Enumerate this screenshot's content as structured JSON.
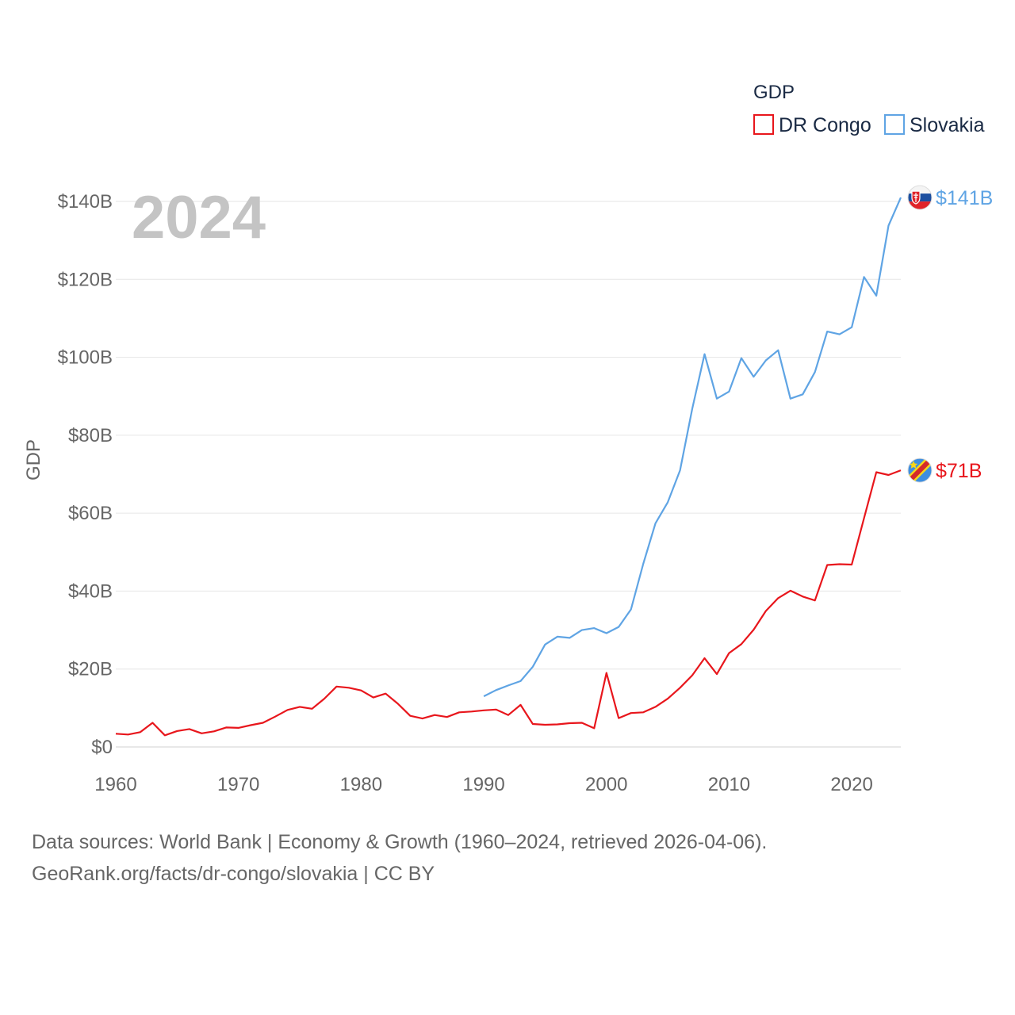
{
  "chart_data": {
    "type": "line",
    "title": "",
    "year_label": "2024",
    "ylabel": "GDP",
    "xlabel": "",
    "ylim": [
      0,
      140
    ],
    "xlim": [
      1960,
      2024
    ],
    "y_ticks": [
      0,
      20,
      40,
      60,
      80,
      100,
      120,
      140
    ],
    "y_tick_labels": [
      "$0",
      "$20B",
      "$40B",
      "$60B",
      "$80B",
      "$100B",
      "$120B",
      "$140B"
    ],
    "x_ticks": [
      1960,
      1970,
      1980,
      1990,
      2000,
      2010,
      2020
    ],
    "x_tick_labels": [
      "1960",
      "1970",
      "1980",
      "1990",
      "2000",
      "2010",
      "2020"
    ],
    "grid": true,
    "legend": {
      "title": "GDP",
      "position": "top-right",
      "entries": [
        {
          "name": "DR Congo",
          "color": "#e8161c"
        },
        {
          "name": "Slovakia",
          "color": "#5fa4e4"
        }
      ]
    },
    "series": [
      {
        "name": "DR Congo",
        "color": "#e8161c",
        "end_label": "$71B",
        "flag_icon": "dr-congo-flag-icon",
        "x": [
          1960,
          1961,
          1962,
          1963,
          1964,
          1965,
          1966,
          1967,
          1968,
          1969,
          1970,
          1971,
          1972,
          1973,
          1974,
          1975,
          1976,
          1977,
          1978,
          1979,
          1980,
          1981,
          1982,
          1983,
          1984,
          1985,
          1986,
          1987,
          1988,
          1989,
          1990,
          1991,
          1992,
          1993,
          1994,
          1995,
          1996,
          1997,
          1998,
          1999,
          2000,
          2001,
          2002,
          2003,
          2004,
          2005,
          2006,
          2007,
          2008,
          2009,
          2010,
          2011,
          2012,
          2013,
          2014,
          2015,
          2016,
          2017,
          2018,
          2019,
          2020,
          2021,
          2022,
          2023,
          2024
        ],
        "values": [
          3.4,
          3.2,
          3.8,
          6.2,
          3.0,
          4.1,
          4.6,
          3.5,
          4.0,
          5.0,
          4.9,
          5.6,
          6.2,
          7.8,
          9.5,
          10.3,
          9.8,
          12.4,
          15.5,
          15.2,
          14.5,
          12.7,
          13.7,
          11.1,
          8.0,
          7.3,
          8.2,
          7.7,
          8.9,
          9.1,
          9.4,
          9.6,
          8.2,
          10.8,
          5.9,
          5.7,
          5.8,
          6.1,
          6.2,
          4.8,
          19.0,
          7.4,
          8.7,
          8.9,
          10.3,
          12.4,
          15.2,
          18.4,
          22.8,
          18.7,
          24.1,
          26.4,
          30.1,
          34.9,
          38.2,
          40.1,
          38.6,
          37.6,
          46.7,
          46.9,
          46.8,
          58.7,
          70.5,
          69.8,
          71.0
        ]
      },
      {
        "name": "Slovakia",
        "color": "#5fa4e4",
        "end_label": "$141B",
        "flag_icon": "slovakia-flag-icon",
        "x": [
          1990,
          1991,
          1992,
          1993,
          1994,
          1995,
          1996,
          1997,
          1998,
          1999,
          2000,
          2001,
          2002,
          2003,
          2004,
          2005,
          2006,
          2007,
          2008,
          2009,
          2010,
          2011,
          2012,
          2013,
          2014,
          2015,
          2016,
          2017,
          2018,
          2019,
          2020,
          2021,
          2022,
          2023,
          2024
        ],
        "values": [
          13.0,
          14.6,
          15.8,
          16.9,
          20.6,
          26.3,
          28.3,
          28.0,
          30.0,
          30.5,
          29.2,
          30.8,
          35.3,
          47.0,
          57.4,
          62.8,
          71.0,
          86.8,
          100.8,
          89.4,
          91.2,
          99.8,
          95.0,
          99.2,
          101.8,
          89.4,
          90.5,
          96.2,
          106.6,
          105.9,
          107.7,
          120.6,
          115.8,
          133.8,
          141.0
        ]
      }
    ]
  },
  "footer": {
    "line1": "Data sources: World Bank | Economy & Growth (1960–2024, retrieved 2026-04-06).",
    "line2": "GeoRank.org/facts/dr-congo/slovakia | CC BY"
  }
}
